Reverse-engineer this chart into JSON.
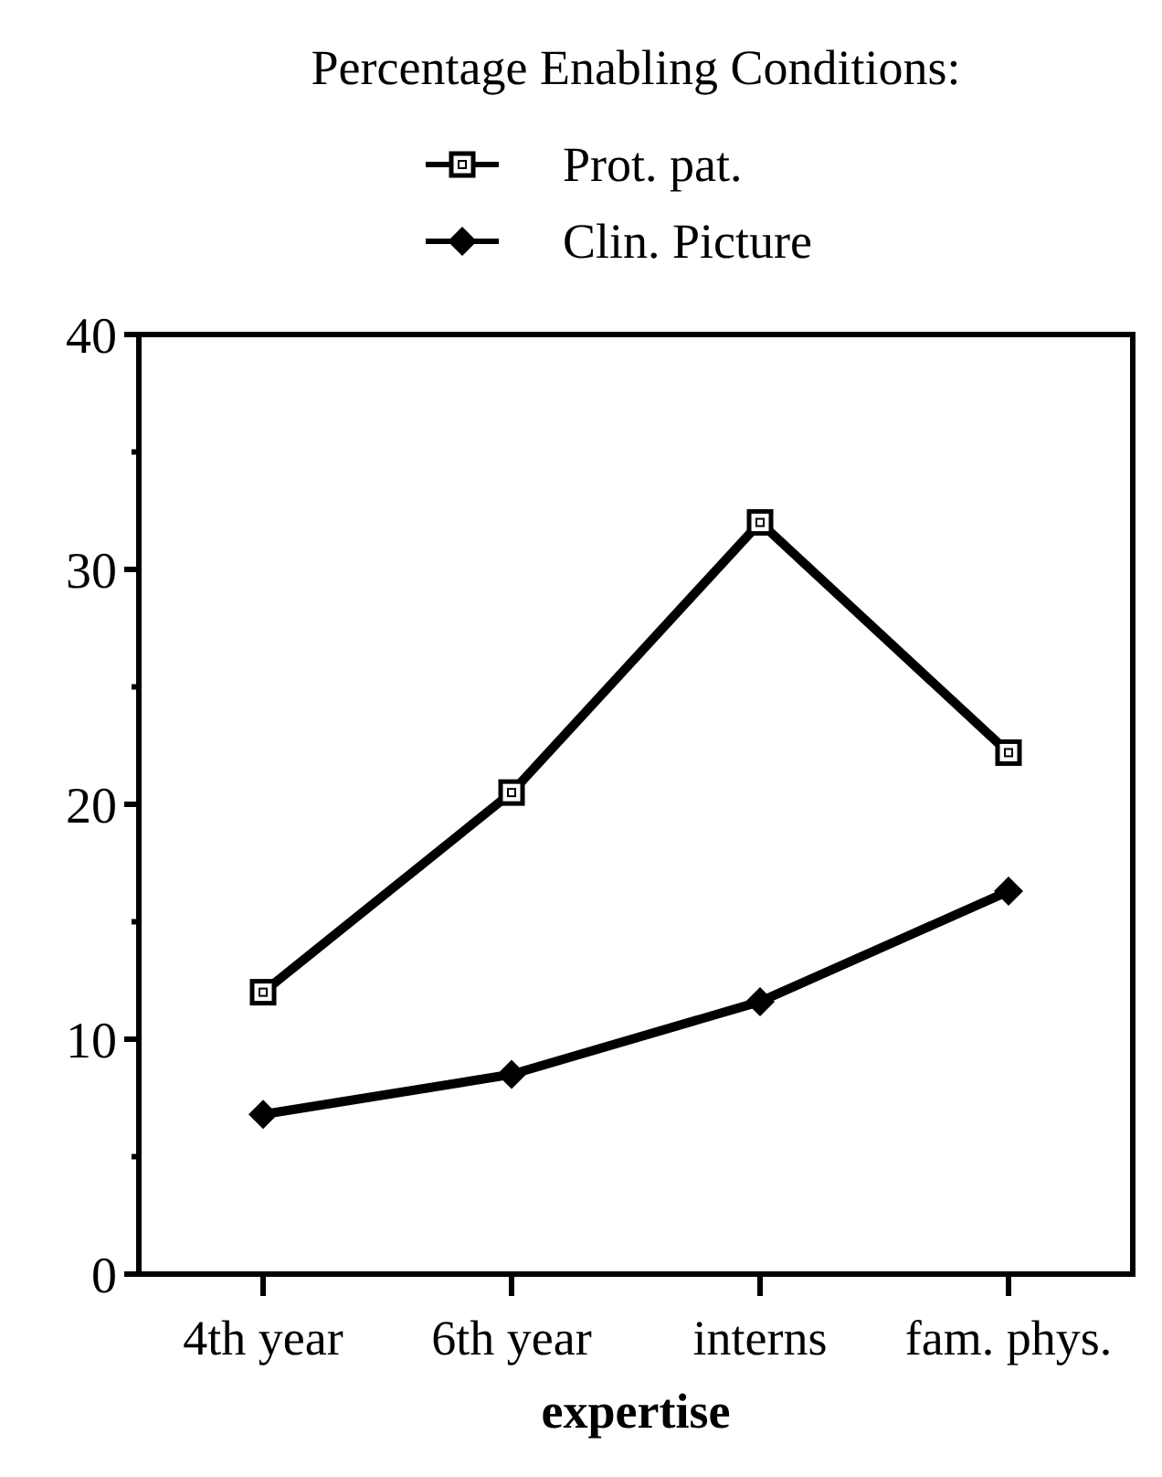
{
  "chart_data": {
    "type": "line",
    "legend_title": "Percentage Enabling Conditions:",
    "xlabel": "expertise",
    "categories": [
      "4th year",
      "6th year",
      "interns",
      "fam. phys."
    ],
    "series": [
      {
        "name": "Prot. pat.",
        "color": "#000000",
        "marker": "square",
        "values": [
          12.0,
          20.5,
          32.0,
          22.2
        ]
      },
      {
        "name": "Clin. Picture",
        "color": "#000000",
        "marker": "diamond",
        "values": [
          6.8,
          8.5,
          11.6,
          16.3
        ]
      }
    ],
    "ylim": [
      0,
      40
    ],
    "yticks": [
      0,
      {
        "value": 5,
        "label": null
      },
      10,
      {
        "value": 15,
        "label": null
      },
      20,
      {
        "value": 25,
        "label": null
      },
      30,
      {
        "value": 35,
        "label": null
      },
      40
    ],
    "grid": false,
    "legend": "top",
    "line_style": "solid"
  }
}
